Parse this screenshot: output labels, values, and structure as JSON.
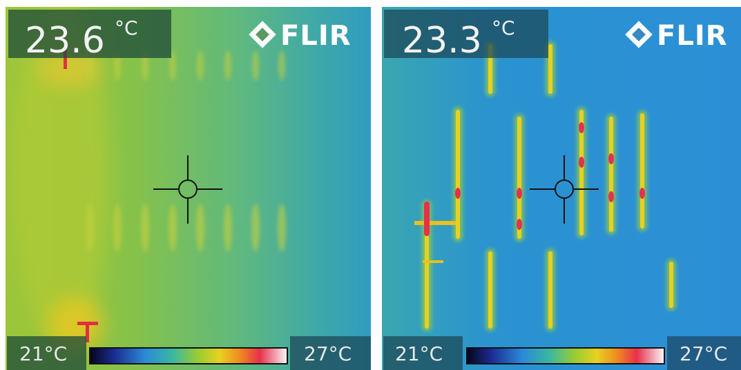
{
  "panels": [
    {
      "reading": "23.6",
      "unit": "°C",
      "logo": "FLIR",
      "min_label": "21°C",
      "max_label": "27°C"
    },
    {
      "reading": "23.3",
      "unit": "°C",
      "logo": "FLIR",
      "min_label": "21°C",
      "max_label": "27°C"
    }
  ]
}
